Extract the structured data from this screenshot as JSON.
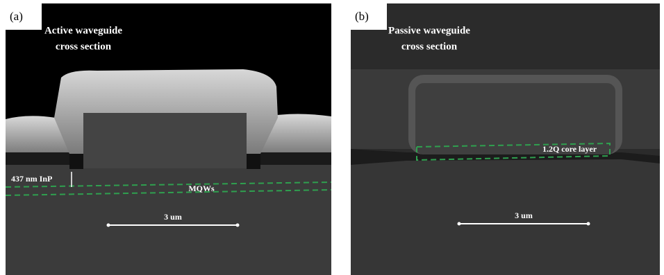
{
  "panels": [
    {
      "label": "(a)",
      "title": [
        "Active waveguide",
        "cross section"
      ],
      "thickness_label": "437 nm InP",
      "layer_label": "MQWs",
      "scale_bar": "3 um"
    },
    {
      "label": "(b)",
      "title": [
        "Passive waveguide",
        "cross section"
      ],
      "layer_label": "1.2Q core layer",
      "scale_bar": "3 um"
    }
  ]
}
